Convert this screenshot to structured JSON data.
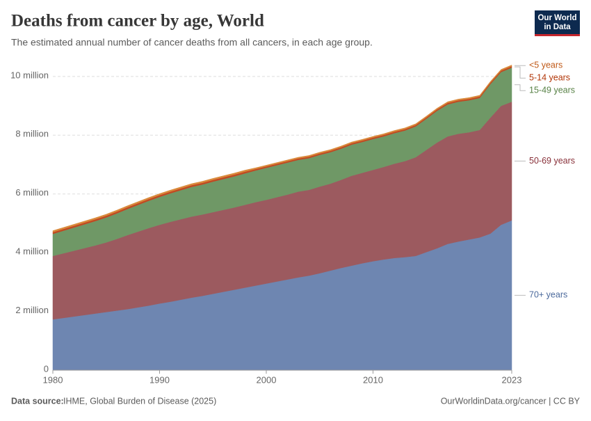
{
  "chart_data": {
    "type": "stacked_area",
    "title": "Deaths from cancer by age, World",
    "subtitle": "The estimated annual number of cancer deaths from all cancers, in each age group.",
    "logo": [
      "Our World",
      "in Data"
    ],
    "source_label": "Data source:",
    "source": "IHME, Global Burden of Disease (2025)",
    "credit": "OurWorldinData.org/cancer | CC BY",
    "x": [
      1980,
      1981,
      1982,
      1983,
      1984,
      1985,
      1986,
      1987,
      1988,
      1989,
      1990,
      1991,
      1992,
      1993,
      1994,
      1995,
      1996,
      1997,
      1998,
      1999,
      2000,
      2001,
      2002,
      2003,
      2004,
      2005,
      2006,
      2007,
      2008,
      2009,
      2010,
      2011,
      2012,
      2013,
      2014,
      2015,
      2016,
      2017,
      2018,
      2019,
      2020,
      2021,
      2022,
      2023
    ],
    "xlim": [
      1980,
      2023
    ],
    "xticks": [
      1980,
      1990,
      2000,
      2010,
      2023
    ],
    "ylim": [
      0,
      10.4
    ],
    "yticks": [
      0,
      {
        "value": 2,
        "label": "2 million"
      },
      {
        "value": 4,
        "label": "4 million"
      },
      {
        "value": 6,
        "label": "6 million"
      },
      {
        "value": 8,
        "label": "8 million"
      },
      {
        "value": 10,
        "label": "10 million"
      }
    ],
    "grid": true,
    "series": [
      {
        "name": "70+ years",
        "color": "#6e86b1",
        "label_color": "#4c6a9c",
        "values": [
          1.73,
          1.78,
          1.83,
          1.88,
          1.93,
          1.98,
          2.03,
          2.08,
          2.14,
          2.2,
          2.27,
          2.33,
          2.4,
          2.47,
          2.53,
          2.6,
          2.67,
          2.74,
          2.81,
          2.88,
          2.95,
          3.02,
          3.09,
          3.16,
          3.22,
          3.3,
          3.39,
          3.48,
          3.56,
          3.64,
          3.71,
          3.77,
          3.82,
          3.85,
          3.89,
          4.02,
          4.15,
          4.3,
          4.38,
          4.45,
          4.52,
          4.65,
          4.95,
          5.1
        ]
      },
      {
        "name": "50-69 years",
        "color": "#9c5a5f",
        "label_color": "#883039",
        "values": [
          2.16,
          2.2,
          2.24,
          2.28,
          2.32,
          2.37,
          2.44,
          2.52,
          2.58,
          2.64,
          2.68,
          2.72,
          2.74,
          2.76,
          2.77,
          2.78,
          2.79,
          2.8,
          2.82,
          2.84,
          2.85,
          2.87,
          2.89,
          2.92,
          2.92,
          2.95,
          2.96,
          3.0,
          3.06,
          3.08,
          3.11,
          3.15,
          3.21,
          3.27,
          3.36,
          3.48,
          3.6,
          3.66,
          3.67,
          3.65,
          3.66,
          3.95,
          4.05,
          4.04
        ]
      },
      {
        "name": "15-49 years",
        "color": "#6f9866",
        "label_color": "#578145",
        "values": [
          0.75,
          0.77,
          0.79,
          0.81,
          0.83,
          0.85,
          0.87,
          0.89,
          0.91,
          0.93,
          0.95,
          0.97,
          0.99,
          1.01,
          1.02,
          1.04,
          1.05,
          1.06,
          1.07,
          1.08,
          1.09,
          1.09,
          1.09,
          1.08,
          1.08,
          1.08,
          1.07,
          1.06,
          1.06,
          1.05,
          1.05,
          1.04,
          1.04,
          1.04,
          1.05,
          1.06,
          1.08,
          1.09,
          1.09,
          1.09,
          1.09,
          1.14,
          1.15,
          1.16
        ]
      },
      {
        "name": "5-14 years",
        "color": "#c14a22",
        "label_color": "#b13507",
        "values": [
          0.06,
          0.06,
          0.06,
          0.06,
          0.06,
          0.06,
          0.06,
          0.06,
          0.06,
          0.06,
          0.06,
          0.06,
          0.06,
          0.06,
          0.06,
          0.06,
          0.06,
          0.06,
          0.06,
          0.05,
          0.05,
          0.05,
          0.05,
          0.05,
          0.05,
          0.05,
          0.05,
          0.05,
          0.05,
          0.05,
          0.05,
          0.05,
          0.05,
          0.05,
          0.05,
          0.05,
          0.05,
          0.05,
          0.05,
          0.05,
          0.05,
          0.05,
          0.05,
          0.05
        ]
      },
      {
        "name": "<5 years",
        "color": "#d98a3c",
        "label_color": "#c05917",
        "values": [
          0.05,
          0.05,
          0.05,
          0.05,
          0.05,
          0.05,
          0.05,
          0.05,
          0.05,
          0.05,
          0.05,
          0.05,
          0.05,
          0.05,
          0.05,
          0.05,
          0.05,
          0.05,
          0.05,
          0.04,
          0.04,
          0.04,
          0.04,
          0.04,
          0.04,
          0.04,
          0.04,
          0.04,
          0.04,
          0.04,
          0.04,
          0.04,
          0.04,
          0.04,
          0.04,
          0.04,
          0.04,
          0.04,
          0.04,
          0.04,
          0.04,
          0.04,
          0.04,
          0.04
        ]
      }
    ]
  }
}
